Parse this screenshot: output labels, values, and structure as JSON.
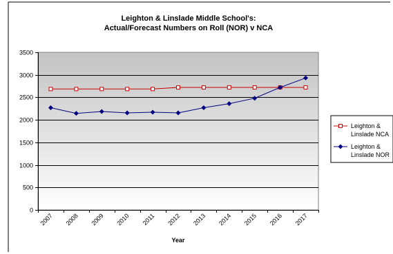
{
  "chart_data": {
    "type": "line",
    "title_lines": [
      "Leighton & Linslade Middle School's:",
      "Actual/Forecast Numbers on Roll (NOR) v NCA"
    ],
    "xlabel": "Year",
    "ylabel": "",
    "categories": [
      "2007",
      "2008",
      "2009",
      "2010",
      "2011",
      "2012",
      "2013",
      "2014",
      "2015",
      "2016",
      "2017"
    ],
    "ylim": [
      0,
      3500
    ],
    "yticks": [
      "0",
      "500",
      "1000",
      "1500",
      "2000",
      "2500",
      "3000",
      "3500"
    ],
    "grid": true,
    "legend_position": "right",
    "series": [
      {
        "name_lines": [
          "Leighton &",
          "Linslade NCA"
        ],
        "color": "#cc0000",
        "marker": "square",
        "values": [
          2685,
          2685,
          2685,
          2685,
          2685,
          2720,
          2720,
          2720,
          2720,
          2720,
          2720
        ]
      },
      {
        "name_lines": [
          "Leighton &",
          "Linslade NOR"
        ],
        "color": "#000080",
        "marker": "diamond",
        "values": [
          2270,
          2145,
          2185,
          2155,
          2170,
          2155,
          2270,
          2360,
          2480,
          2720,
          2930
        ]
      }
    ]
  }
}
